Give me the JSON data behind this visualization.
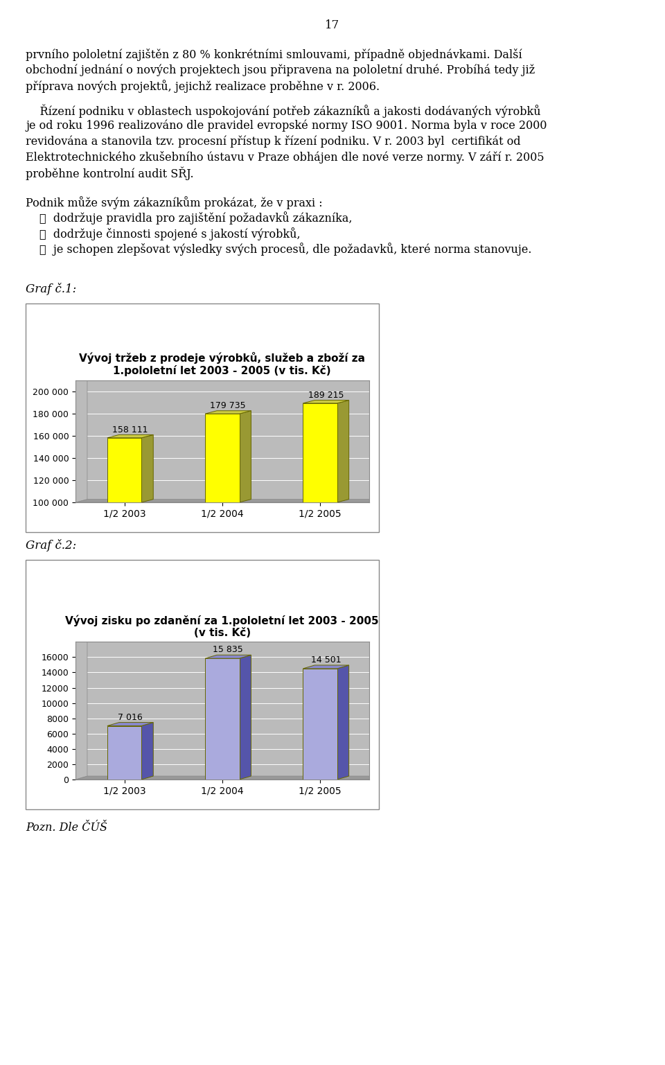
{
  "page_number": "17",
  "background_color": "#ffffff",
  "graf1_label": "Graf č.1:",
  "graf1_title": "Vývoj tržeb z prodeje výrobků, služeb a zboží za\n1.pololetní let 2003 - 2005 (v tis. Kč)",
  "graf1_categories": [
    "1/2 2003",
    "1/2 2004",
    "1/2 2005"
  ],
  "graf1_values": [
    158111,
    179735,
    189215
  ],
  "graf1_labels": [
    "158 111",
    "179 735",
    "189 215"
  ],
  "graf1_ylim": [
    100000,
    210000
  ],
  "graf1_yticks": [
    100000,
    120000,
    140000,
    160000,
    180000,
    200000
  ],
  "graf1_ytick_labels": [
    "100 000",
    "120 000",
    "140 000",
    "160 000",
    "180 000",
    "200 000"
  ],
  "graf1_bar_face": "#ffff00",
  "graf1_bar_side": "#999933",
  "graf1_bar_top": "#cccc44",
  "graf1_bg": "#bbbbbb",
  "graf2_label": "Graf č.2:",
  "graf2_title": "Vývoj zisku po zdanění za 1.pololetní let 2003 - 2005\n(v tis. Kč)",
  "graf2_categories": [
    "1/2 2003",
    "1/2 2004",
    "1/2 2005"
  ],
  "graf2_values": [
    7016,
    15835,
    14501
  ],
  "graf2_labels": [
    "7 016",
    "15 835",
    "14 501"
  ],
  "graf2_ylim": [
    0,
    18000
  ],
  "graf2_yticks": [
    0,
    2000,
    4000,
    6000,
    8000,
    10000,
    12000,
    14000,
    16000
  ],
  "graf2_ytick_labels": [
    "0",
    "2000",
    "4000",
    "6000",
    "8000",
    "10000",
    "12000",
    "14000",
    "16000"
  ],
  "graf2_bar_face": "#aaaadd",
  "graf2_bar_side": "#5555aa",
  "graf2_bar_top": "#8888cc",
  "graf2_bg": "#bbbbbb",
  "pozn": "Pozn. Dle ČÚŠ",
  "para1_lines": [
    "prvního pololetní zajištěn z 80 % konkrétními smlouvami, případně objednávkami. Další",
    "obchodní jednání o nových projektech jsou připravena na pololetní druhé. Probíhá tedy již",
    "příprava nových projektů, jejichž realizace proběhne v r. 2006."
  ],
  "para2_lines": [
    "    Řízení podniku v oblastech uspokojování potřeb zákazníků a jakosti dodávaných výrobků",
    "je od roku 1996 realizováno dle pravidel evropské normy ISO 9001. Norma byla v roce 2000",
    "revidována a stanovila tzv. procesní přístup k řízení podniku. V r. 2003 byl  certifikát od",
    "Elektrotechnického zkušebního ústavu v Praze obhájen dle nové verze normy. V září r. 2005",
    "proběhne kontrolní audit SŘJ."
  ],
  "para3_intro": "Podnik může svým zákazníkům prokázat, že v praxi :",
  "bullets": [
    "dodržuje pravidla pro zajištění požadavků zákazníka,",
    "dodržuje činnosti spojené s jakostí výrobků,",
    "je schopen zlepšovat výsledky svých procesů, dle požadavků, které norma stanovuje."
  ]
}
